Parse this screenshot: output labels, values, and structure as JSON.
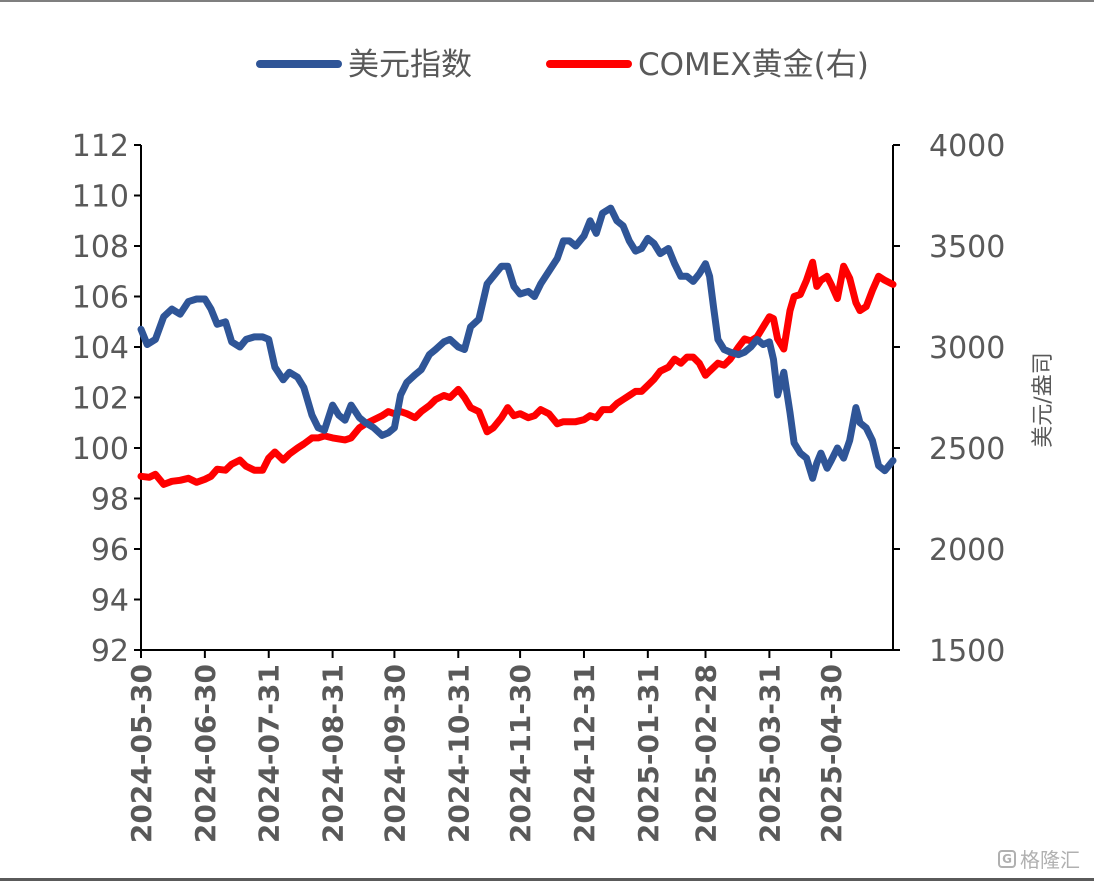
{
  "chart_data": {
    "type": "line",
    "title": "",
    "legend_position": "top",
    "grid": false,
    "colors": {
      "dxy": "#2f5597",
      "gold": "#ff0000",
      "axis": "#000000",
      "text": "#595959"
    },
    "y_left": {
      "min": 92,
      "max": 112,
      "step": 2,
      "ticks": [
        "92",
        "94",
        "96",
        "98",
        "100",
        "102",
        "104",
        "106",
        "108",
        "110",
        "112"
      ]
    },
    "y_right": {
      "label": "美元/盎司",
      "min": 1500,
      "max": 4000,
      "step": 500,
      "ticks": [
        "1500",
        "2000",
        "2500",
        "3000",
        "3500",
        "4000"
      ]
    },
    "x_ticks": [
      "2024-05-30",
      "2024-06-30",
      "2024-07-31",
      "2024-08-31",
      "2024-09-30",
      "2024-10-31",
      "2024-11-30",
      "2024-12-31",
      "2025-01-31",
      "2025-02-28",
      "2025-03-31",
      "2025-04-30"
    ],
    "x_range": [
      "2024-05-30",
      "2025-05-30"
    ],
    "series": [
      {
        "name": "美元指数",
        "axis": "left",
        "color": "#2f5597",
        "points": [
          [
            "2024-05-30",
            104.7
          ],
          [
            "2024-06-02",
            104.1
          ],
          [
            "2024-06-06",
            104.3
          ],
          [
            "2024-06-10",
            105.2
          ],
          [
            "2024-06-14",
            105.5
          ],
          [
            "2024-06-18",
            105.3
          ],
          [
            "2024-06-22",
            105.8
          ],
          [
            "2024-06-26",
            105.9
          ],
          [
            "2024-06-30",
            105.9
          ],
          [
            "2024-07-03",
            105.5
          ],
          [
            "2024-07-06",
            104.9
          ],
          [
            "2024-07-10",
            105.0
          ],
          [
            "2024-07-13",
            104.2
          ],
          [
            "2024-07-17",
            104.0
          ],
          [
            "2024-07-20",
            104.3
          ],
          [
            "2024-07-24",
            104.4
          ],
          [
            "2024-07-28",
            104.4
          ],
          [
            "2024-07-31",
            104.3
          ],
          [
            "2024-08-03",
            103.2
          ],
          [
            "2024-08-07",
            102.7
          ],
          [
            "2024-08-10",
            103.0
          ],
          [
            "2024-08-14",
            102.8
          ],
          [
            "2024-08-17",
            102.4
          ],
          [
            "2024-08-21",
            101.3
          ],
          [
            "2024-08-24",
            100.8
          ],
          [
            "2024-08-27",
            100.7
          ],
          [
            "2024-08-31",
            101.7
          ],
          [
            "2024-09-03",
            101.3
          ],
          [
            "2024-09-06",
            101.1
          ],
          [
            "2024-09-09",
            101.7
          ],
          [
            "2024-09-13",
            101.2
          ],
          [
            "2024-09-16",
            101.0
          ],
          [
            "2024-09-20",
            100.8
          ],
          [
            "2024-09-24",
            100.5
          ],
          [
            "2024-09-27",
            100.6
          ],
          [
            "2024-09-30",
            100.8
          ],
          [
            "2024-10-03",
            102.1
          ],
          [
            "2024-10-06",
            102.6
          ],
          [
            "2024-10-10",
            102.9
          ],
          [
            "2024-10-13",
            103.1
          ],
          [
            "2024-10-17",
            103.7
          ],
          [
            "2024-10-20",
            103.9
          ],
          [
            "2024-10-24",
            104.2
          ],
          [
            "2024-10-27",
            104.3
          ],
          [
            "2024-10-31",
            104.0
          ],
          [
            "2024-11-03",
            103.9
          ],
          [
            "2024-11-06",
            104.8
          ],
          [
            "2024-11-10",
            105.1
          ],
          [
            "2024-11-14",
            106.5
          ],
          [
            "2024-11-17",
            106.8
          ],
          [
            "2024-11-21",
            107.2
          ],
          [
            "2024-11-24",
            107.2
          ],
          [
            "2024-11-27",
            106.4
          ],
          [
            "2024-11-30",
            106.1
          ],
          [
            "2024-12-04",
            106.2
          ],
          [
            "2024-12-07",
            106.0
          ],
          [
            "2024-12-10",
            106.5
          ],
          [
            "2024-12-14",
            107.0
          ],
          [
            "2024-12-18",
            107.5
          ],
          [
            "2024-12-21",
            108.2
          ],
          [
            "2024-12-24",
            108.2
          ],
          [
            "2024-12-27",
            108.0
          ],
          [
            "2024-12-31",
            108.4
          ],
          [
            "2025-01-03",
            109.0
          ],
          [
            "2025-01-06",
            108.5
          ],
          [
            "2025-01-09",
            109.3
          ],
          [
            "2025-01-13",
            109.5
          ],
          [
            "2025-01-16",
            109.0
          ],
          [
            "2025-01-19",
            108.8
          ],
          [
            "2025-01-22",
            108.2
          ],
          [
            "2025-01-25",
            107.8
          ],
          [
            "2025-01-28",
            107.9
          ],
          [
            "2025-01-31",
            108.3
          ],
          [
            "2025-02-03",
            108.1
          ],
          [
            "2025-02-06",
            107.7
          ],
          [
            "2025-02-10",
            107.9
          ],
          [
            "2025-02-13",
            107.3
          ],
          [
            "2025-02-16",
            106.8
          ],
          [
            "2025-02-19",
            106.8
          ],
          [
            "2025-02-22",
            106.6
          ],
          [
            "2025-02-25",
            106.9
          ],
          [
            "2025-02-28",
            107.3
          ],
          [
            "2025-03-02",
            106.8
          ],
          [
            "2025-03-04",
            105.5
          ],
          [
            "2025-03-06",
            104.3
          ],
          [
            "2025-03-09",
            103.9
          ],
          [
            "2025-03-12",
            103.8
          ],
          [
            "2025-03-16",
            103.7
          ],
          [
            "2025-03-19",
            103.8
          ],
          [
            "2025-03-22",
            104.0
          ],
          [
            "2025-03-25",
            104.3
          ],
          [
            "2025-03-28",
            104.1
          ],
          [
            "2025-03-31",
            104.2
          ],
          [
            "2025-04-02",
            103.5
          ],
          [
            "2025-04-04",
            102.1
          ],
          [
            "2025-04-07",
            103.0
          ],
          [
            "2025-04-10",
            101.4
          ],
          [
            "2025-04-12",
            100.2
          ],
          [
            "2025-04-15",
            99.8
          ],
          [
            "2025-04-18",
            99.6
          ],
          [
            "2025-04-21",
            98.8
          ],
          [
            "2025-04-23",
            99.4
          ],
          [
            "2025-04-25",
            99.8
          ],
          [
            "2025-04-28",
            99.2
          ],
          [
            "2025-04-30",
            99.5
          ],
          [
            "2025-05-03",
            100.0
          ],
          [
            "2025-05-06",
            99.6
          ],
          [
            "2025-05-09",
            100.3
          ],
          [
            "2025-05-12",
            101.6
          ],
          [
            "2025-05-14",
            101.0
          ],
          [
            "2025-05-17",
            100.8
          ],
          [
            "2025-05-20",
            100.3
          ],
          [
            "2025-05-23",
            99.3
          ],
          [
            "2025-05-26",
            99.1
          ],
          [
            "2025-05-30",
            99.5
          ]
        ]
      },
      {
        "name": "COMEX黄金(右)",
        "axis": "right",
        "color": "#ff0000",
        "points": [
          [
            "2024-05-30",
            2360
          ],
          [
            "2024-06-03",
            2355
          ],
          [
            "2024-06-06",
            2370
          ],
          [
            "2024-06-10",
            2320
          ],
          [
            "2024-06-14",
            2335
          ],
          [
            "2024-06-18",
            2340
          ],
          [
            "2024-06-22",
            2350
          ],
          [
            "2024-06-26",
            2330
          ],
          [
            "2024-06-30",
            2345
          ],
          [
            "2024-07-03",
            2360
          ],
          [
            "2024-07-06",
            2395
          ],
          [
            "2024-07-10",
            2390
          ],
          [
            "2024-07-13",
            2420
          ],
          [
            "2024-07-17",
            2440
          ],
          [
            "2024-07-20",
            2410
          ],
          [
            "2024-07-24",
            2390
          ],
          [
            "2024-07-28",
            2390
          ],
          [
            "2024-07-31",
            2450
          ],
          [
            "2024-08-03",
            2480
          ],
          [
            "2024-08-07",
            2440
          ],
          [
            "2024-08-10",
            2470
          ],
          [
            "2024-08-14",
            2500
          ],
          [
            "2024-08-17",
            2520
          ],
          [
            "2024-08-21",
            2550
          ],
          [
            "2024-08-24",
            2550
          ],
          [
            "2024-08-27",
            2560
          ],
          [
            "2024-08-31",
            2550
          ],
          [
            "2024-09-03",
            2545
          ],
          [
            "2024-09-06",
            2540
          ],
          [
            "2024-09-09",
            2550
          ],
          [
            "2024-09-13",
            2600
          ],
          [
            "2024-09-16",
            2620
          ],
          [
            "2024-09-20",
            2640
          ],
          [
            "2024-09-24",
            2660
          ],
          [
            "2024-09-27",
            2680
          ],
          [
            "2024-09-30",
            2670
          ],
          [
            "2024-10-03",
            2680
          ],
          [
            "2024-10-06",
            2670
          ],
          [
            "2024-10-10",
            2650
          ],
          [
            "2024-10-13",
            2680
          ],
          [
            "2024-10-17",
            2710
          ],
          [
            "2024-10-20",
            2740
          ],
          [
            "2024-10-24",
            2760
          ],
          [
            "2024-10-27",
            2750
          ],
          [
            "2024-10-31",
            2790
          ],
          [
            "2024-11-03",
            2750
          ],
          [
            "2024-11-06",
            2700
          ],
          [
            "2024-11-10",
            2680
          ],
          [
            "2024-11-14",
            2580
          ],
          [
            "2024-11-17",
            2600
          ],
          [
            "2024-11-21",
            2650
          ],
          [
            "2024-11-24",
            2700
          ],
          [
            "2024-11-27",
            2660
          ],
          [
            "2024-11-30",
            2670
          ],
          [
            "2024-12-04",
            2650
          ],
          [
            "2024-12-07",
            2660
          ],
          [
            "2024-12-10",
            2690
          ],
          [
            "2024-12-14",
            2670
          ],
          [
            "2024-12-18",
            2620
          ],
          [
            "2024-12-21",
            2630
          ],
          [
            "2024-12-24",
            2630
          ],
          [
            "2024-12-27",
            2630
          ],
          [
            "2024-12-31",
            2640
          ],
          [
            "2025-01-03",
            2660
          ],
          [
            "2025-01-06",
            2650
          ],
          [
            "2025-01-09",
            2690
          ],
          [
            "2025-01-13",
            2690
          ],
          [
            "2025-01-16",
            2720
          ],
          [
            "2025-01-19",
            2740
          ],
          [
            "2025-01-22",
            2760
          ],
          [
            "2025-01-25",
            2780
          ],
          [
            "2025-01-28",
            2780
          ],
          [
            "2025-01-31",
            2810
          ],
          [
            "2025-02-03",
            2840
          ],
          [
            "2025-02-06",
            2880
          ],
          [
            "2025-02-10",
            2900
          ],
          [
            "2025-02-13",
            2940
          ],
          [
            "2025-02-16",
            2920
          ],
          [
            "2025-02-19",
            2950
          ],
          [
            "2025-02-22",
            2950
          ],
          [
            "2025-02-25",
            2920
          ],
          [
            "2025-02-28",
            2860
          ],
          [
            "2025-03-02",
            2880
          ],
          [
            "2025-03-04",
            2900
          ],
          [
            "2025-03-06",
            2920
          ],
          [
            "2025-03-09",
            2910
          ],
          [
            "2025-03-12",
            2940
          ],
          [
            "2025-03-16",
            3000
          ],
          [
            "2025-03-19",
            3040
          ],
          [
            "2025-03-22",
            3030
          ],
          [
            "2025-03-25",
            3050
          ],
          [
            "2025-03-28",
            3100
          ],
          [
            "2025-03-31",
            3150
          ],
          [
            "2025-04-02",
            3140
          ],
          [
            "2025-04-04",
            3040
          ],
          [
            "2025-04-07",
            2990
          ],
          [
            "2025-04-10",
            3180
          ],
          [
            "2025-04-12",
            3250
          ],
          [
            "2025-04-15",
            3260
          ],
          [
            "2025-04-18",
            3330
          ],
          [
            "2025-04-21",
            3420
          ],
          [
            "2025-04-23",
            3300
          ],
          [
            "2025-04-25",
            3330
          ],
          [
            "2025-04-28",
            3350
          ],
          [
            "2025-04-30",
            3310
          ],
          [
            "2025-05-03",
            3240
          ],
          [
            "2025-05-06",
            3400
          ],
          [
            "2025-05-09",
            3340
          ],
          [
            "2025-05-12",
            3220
          ],
          [
            "2025-05-14",
            3180
          ],
          [
            "2025-05-17",
            3200
          ],
          [
            "2025-05-20",
            3280
          ],
          [
            "2025-05-23",
            3350
          ],
          [
            "2025-05-26",
            3330
          ],
          [
            "2025-05-30",
            3310
          ]
        ]
      }
    ]
  },
  "watermark": {
    "text": "格隆汇",
    "logo_glyph": "G"
  }
}
